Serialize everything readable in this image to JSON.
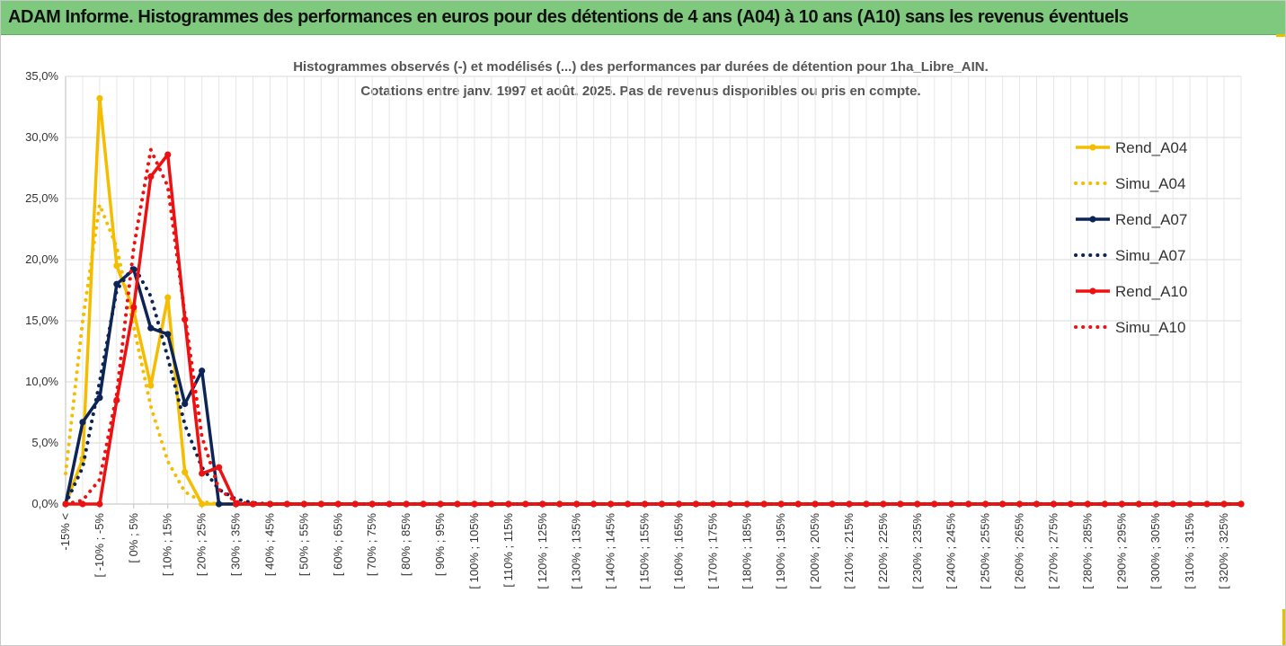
{
  "header": {
    "title": "ADAM Informe. Histogrammes des performances en euros pour des détentions de 4 ans (A04) à 10 ans (A10) sans les revenus éventuels"
  },
  "chart_data": {
    "type": "line",
    "title": "Histogrammes observés (-) et modélisés (...) des performances par durées de détention pour 1ha_Libre_AIN.",
    "subtitle": "Cotations entre janv. 1997 et août. 2025. Pas de revenus disponibles ou pris en compte.",
    "xlabel": "",
    "ylabel": "",
    "ylim": [
      0,
      35
    ],
    "y_ticks": [
      "0,0%",
      "5,0%",
      "10,0%",
      "15,0%",
      "20,0%",
      "25,0%",
      "30,0%",
      "35,0%"
    ],
    "grid": true,
    "legend_position": "right",
    "x_tick_labels": [
      "-15% <",
      "[ -10% ; -5%",
      "[ 0% ; 5%",
      "[ 10% ; 15%",
      "[ 20% ; 25%",
      "[ 30% ; 35%",
      "[ 40% ; 45%",
      "[ 50% ; 55%",
      "[ 60% ; 65%",
      "[ 70% ; 75%",
      "[ 80% ; 85%",
      "[ 90% ; 95%",
      "[ 100% ; 105%",
      "[ 110% ; 115%",
      "[ 120% ; 125%",
      "[ 130% ; 135%",
      "[ 140% ; 145%",
      "[ 150% ; 155%",
      "[ 160% ; 165%",
      "[ 170% ; 175%",
      "[ 180% ; 185%",
      "[ 190% ; 195%",
      "[ 200% ; 205%",
      "[ 210% ; 215%",
      "[ 220% ; 225%",
      "[ 230% ; 235%",
      "[ 240% ; 245%",
      "[ 250% ; 255%",
      "[ 260% ; 265%",
      "[ 270% ; 275%",
      "[ 280% ; 285%",
      "[ 290% ; 295%",
      "[ 300% ; 305%",
      "[ 310% ; 315%",
      "[ 320% ; 325%"
    ],
    "series": [
      {
        "name": "Rend_A04",
        "color": "#f5bd00",
        "style": "solid",
        "markers": true,
        "values": [
          0,
          3.7,
          33.2,
          19.5,
          15.8,
          9.7,
          16.9,
          2.6,
          0,
          0,
          0
        ]
      },
      {
        "name": "Simu_A04",
        "color": "#f5bd00",
        "style": "dotted",
        "markers": false,
        "values": [
          2.5,
          15,
          24.5,
          21,
          14.5,
          8,
          3.5,
          1,
          0.2,
          0
        ]
      },
      {
        "name": "Rend_A07",
        "color": "#0d2456",
        "style": "solid",
        "markers": true,
        "values": [
          0,
          6.7,
          8.7,
          18,
          19.2,
          14.4,
          13.9,
          8.2,
          10.9,
          0,
          0
        ]
      },
      {
        "name": "Simu_A07",
        "color": "#0d2456",
        "style": "dotted",
        "markers": false,
        "values": [
          0,
          3,
          10,
          17.5,
          19.5,
          17,
          12,
          6.5,
          3,
          1.2,
          0.4,
          0.1,
          0
        ]
      },
      {
        "name": "Rend_A10",
        "color": "#ee1111",
        "style": "solid",
        "markers": true,
        "values": [
          0,
          0,
          0,
          8.5,
          16.1,
          26.8,
          28.6,
          15.1,
          2.5,
          3.0,
          0,
          0
        ]
      },
      {
        "name": "Simu_A10",
        "color": "#ee1111",
        "style": "dotted",
        "markers": false,
        "values": [
          0,
          0.3,
          2,
          9,
          21,
          29,
          26,
          15.5,
          5.5,
          1.2,
          0.2,
          0
        ]
      }
    ]
  }
}
